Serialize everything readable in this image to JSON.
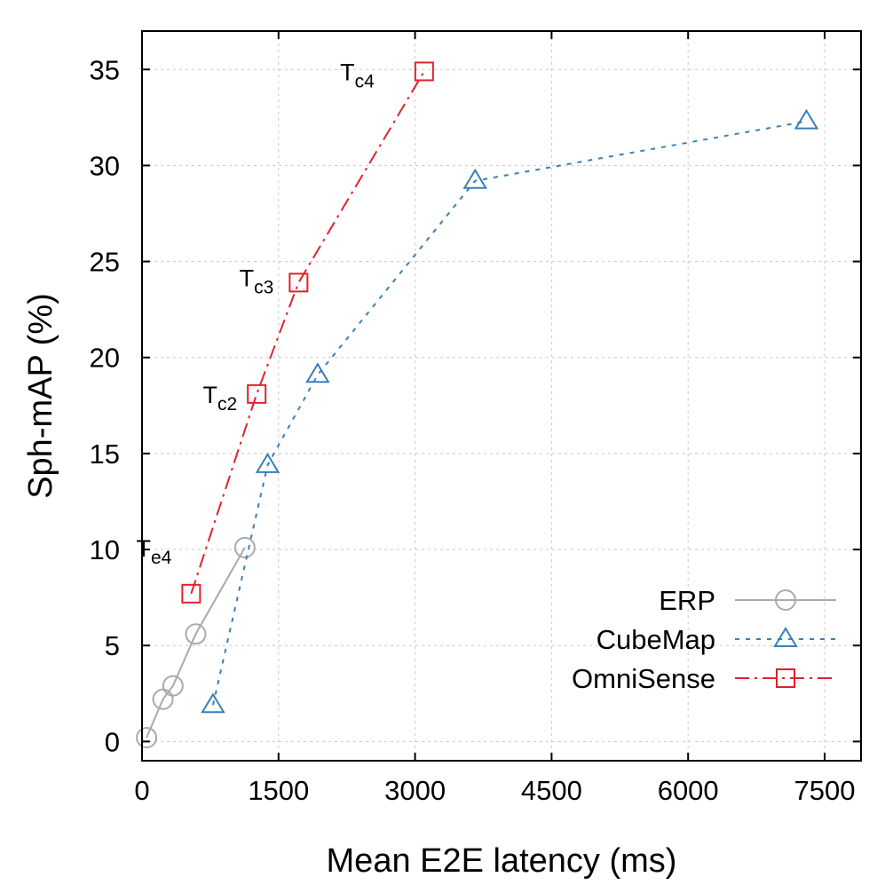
{
  "chart_data": {
    "type": "line",
    "xlabel": "Mean E2E latency (ms)",
    "ylabel": "Sph-mAP (%)",
    "xlim": [
      0,
      7900
    ],
    "ylim": [
      -1,
      37
    ],
    "xticks": [
      0,
      1500,
      3000,
      4500,
      6000,
      7500
    ],
    "yticks": [
      0,
      5,
      10,
      15,
      20,
      25,
      30,
      35
    ],
    "grid": true,
    "legend_position": "bottom-right",
    "series": [
      {
        "name": "ERP",
        "color": "#aaaaaa",
        "marker": "circle",
        "line": "solid",
        "points": [
          [
            50,
            0.2
          ],
          [
            230,
            2.2
          ],
          [
            340,
            2.9
          ],
          [
            590,
            5.6
          ],
          [
            1130,
            10.1
          ]
        ]
      },
      {
        "name": "CubeMap",
        "color": "#3a7fb8",
        "marker": "triangle",
        "line": "dashed",
        "points": [
          [
            780,
            1.9
          ],
          [
            1380,
            14.4
          ],
          [
            1930,
            19.1
          ],
          [
            3660,
            29.2
          ],
          [
            7300,
            32.3
          ]
        ]
      },
      {
        "name": "OmniSense",
        "color": "#e0212d",
        "marker": "square",
        "line": "dashdot",
        "points": [
          [
            540,
            7.7
          ],
          [
            1260,
            18.1
          ],
          [
            1720,
            23.9
          ],
          [
            3100,
            34.9
          ]
        ]
      }
    ],
    "annotations": [
      {
        "base": "T",
        "sub": "e4",
        "x": 540,
        "y": 7.7
      },
      {
        "base": "T",
        "sub": "c2",
        "x": 1260,
        "y": 18.1
      },
      {
        "base": "T",
        "sub": "c3",
        "x": 1720,
        "y": 23.9
      },
      {
        "base": "T",
        "sub": "c4",
        "x": 3100,
        "y": 34.9
      }
    ]
  }
}
